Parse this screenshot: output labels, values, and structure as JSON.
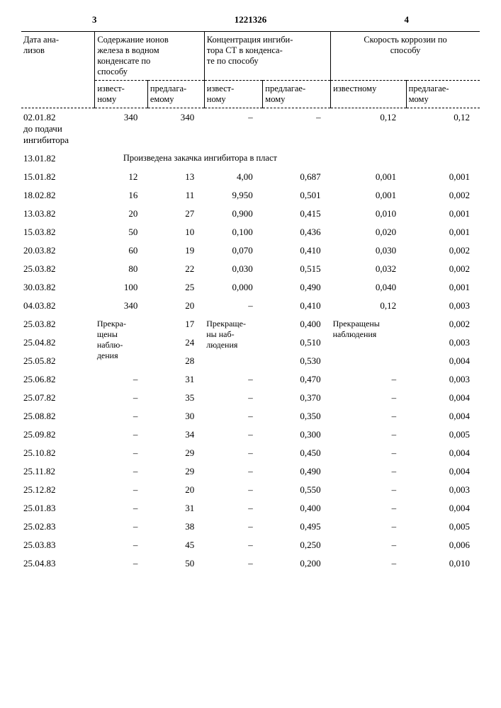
{
  "page_left": "3",
  "doc_number": "1221326",
  "page_right": "4",
  "headers": {
    "date": "Дата ана-\nлизов",
    "group1": "Содержание ионов\nжелеза в водном\nконденсате по\nспособу",
    "group2": "Концентрация ингиби-\nтора СТ в конденса-\nте по способу",
    "group3": "Скорость коррозии по\nспособу",
    "sub_known": "извест-\nному",
    "sub_proposed": "предлага-\nемому",
    "sub_known2": "извест-\nному",
    "sub_proposed2": "предлагае-\nмому",
    "sub_known3": "известному",
    "sub_proposed3": "предлагае-\nмому"
  },
  "first_date": "02.01.82\nдо подачи\nингибитора",
  "first_row": {
    "a": "340",
    "b": "340",
    "c": "–",
    "d": "–",
    "e": "0,12",
    "f": "0,12"
  },
  "inject_date": "13.01.82",
  "inject_text": "Произведена закачка ингибитора в пласт",
  "rows": [
    {
      "date": "15.01.82",
      "a": "12",
      "b": "13",
      "c": "4,00",
      "d": "0,687",
      "e": "0,001",
      "f": "0,001"
    },
    {
      "date": "18.02.82",
      "a": "16",
      "b": "11",
      "c": "9,950",
      "d": "0,501",
      "e": "0,001",
      "f": "0,002"
    },
    {
      "date": "13.03.82",
      "a": "20",
      "b": "27",
      "c": "0,900",
      "d": "0,415",
      "e": "0,010",
      "f": "0,001"
    },
    {
      "date": "15.03.82",
      "a": "50",
      "b": "10",
      "c": "0,100",
      "d": "0,436",
      "e": "0,020",
      "f": "0,001"
    },
    {
      "date": "20.03.82",
      "a": "60",
      "b": "19",
      "c": "0,070",
      "d": "0,410",
      "e": "0,030",
      "f": "0,002"
    },
    {
      "date": "25.03.82",
      "a": "80",
      "b": "22",
      "c": "0,030",
      "d": "0,515",
      "e": "0,032",
      "f": "0,002"
    },
    {
      "date": "30.03.82",
      "a": "100",
      "b": "25",
      "c": "0,000",
      "d": "0,490",
      "e": "0,040",
      "f": "0,001"
    },
    {
      "date": "04.03.82",
      "a": "340",
      "b": "20",
      "c": "–",
      "d": "0,410",
      "e": "0,12",
      "f": "0,003"
    }
  ],
  "stop_rows": [
    {
      "date": "25.03.82",
      "b": "17",
      "d": "0,400",
      "f": "0,002"
    },
    {
      "date": "25.04.82",
      "b": "24",
      "d": "0,510",
      "f": "0,003"
    }
  ],
  "stop_a": "Прекра-\nщены\nнаблю-\nдения",
  "stop_c": "Прекраще-\nны наб-\nлюдения",
  "stop_e": "Прекращены\nнаблюдения",
  "tail_rows": [
    {
      "date": "25.05.82",
      "a": "–",
      "b": "28",
      "c": "–",
      "d": "0,530",
      "e": "–",
      "f": "0,004"
    },
    {
      "date": "25.06.82",
      "a": "–",
      "b": "31",
      "c": "–",
      "d": "0,470",
      "e": "–",
      "f": "0,003"
    },
    {
      "date": "25.07.82",
      "a": "–",
      "b": "35",
      "c": "–",
      "d": "0,370",
      "e": "–",
      "f": "0,004"
    },
    {
      "date": "25.08.82",
      "a": "–",
      "b": "30",
      "c": "–",
      "d": "0,350",
      "e": "–",
      "f": "0,004"
    },
    {
      "date": "25.09.82",
      "a": "–",
      "b": "34",
      "c": "–",
      "d": "0,300",
      "e": "–",
      "f": "0,005"
    },
    {
      "date": "25.10.82",
      "a": "–",
      "b": "29",
      "c": "–",
      "d": "0,450",
      "e": "–",
      "f": "0,004"
    },
    {
      "date": "25.11.82",
      "a": "–",
      "b": "29",
      "c": "–",
      "d": "0,490",
      "e": "–",
      "f": "0,004"
    },
    {
      "date": "25.12.82",
      "a": "–",
      "b": "20",
      "c": "–",
      "d": "0,550",
      "e": "–",
      "f": "0,003"
    },
    {
      "date": "25.01.83",
      "a": "–",
      "b": "31",
      "c": "–",
      "d": "0,400",
      "e": "–",
      "f": "0,004"
    },
    {
      "date": "25.02.83",
      "a": "–",
      "b": "38",
      "c": "–",
      "d": "0,495",
      "e": "–",
      "f": "0,005"
    },
    {
      "date": "25.03.83",
      "a": "–",
      "b": "45",
      "c": "–",
      "d": "0,250",
      "e": "–",
      "f": "0,006"
    },
    {
      "date": "25.04.83",
      "a": "–",
      "b": "50",
      "c": "–",
      "d": "0,200",
      "e": "–",
      "f": "0,010"
    }
  ]
}
